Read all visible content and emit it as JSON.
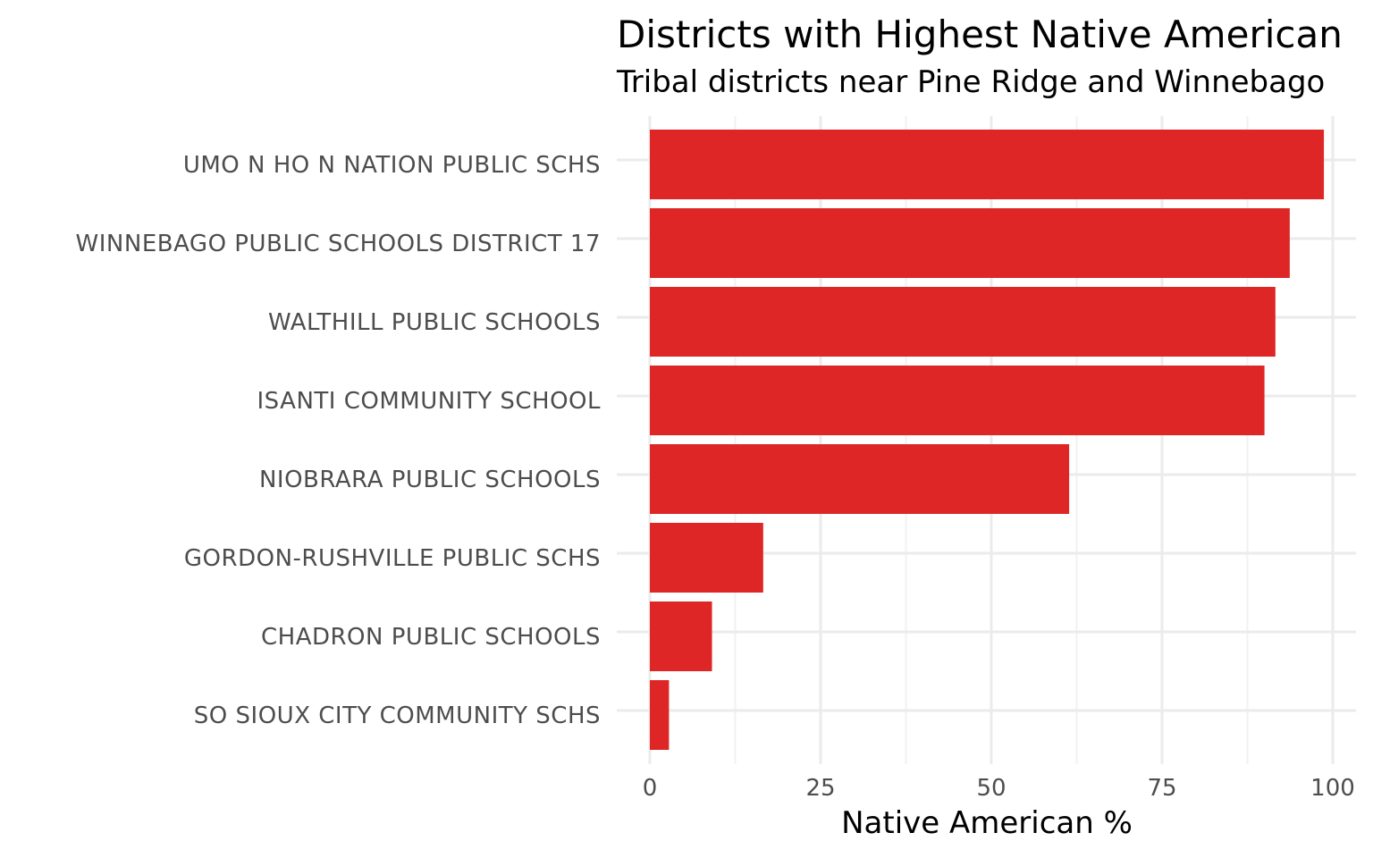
{
  "chart_data": {
    "type": "bar",
    "orientation": "horizontal",
    "title": "Districts with Highest Native American",
    "subtitle": "Tribal districts near Pine Ridge and Winnebago",
    "xlabel": "Native American %",
    "ylabel": "",
    "xlim": [
      0,
      100
    ],
    "xticks": [
      0,
      25,
      50,
      75,
      100
    ],
    "grid": true,
    "bar_color": "#de2626",
    "categories": [
      "UMO N HO N NATION PUBLIC SCHS",
      "WINNEBAGO PUBLIC SCHOOLS DISTRICT 17",
      "WALTHILL PUBLIC SCHOOLS",
      "ISANTI COMMUNITY SCHOOL",
      "NIOBRARA PUBLIC SCHOOLS",
      "GORDON-RUSHVILLE PUBLIC SCHS",
      "CHADRON PUBLIC SCHOOLS",
      "SO SIOUX CITY COMMUNITY SCHS"
    ],
    "values": [
      98.7,
      93.7,
      91.6,
      90.0,
      61.4,
      16.6,
      9.1,
      2.8
    ]
  }
}
